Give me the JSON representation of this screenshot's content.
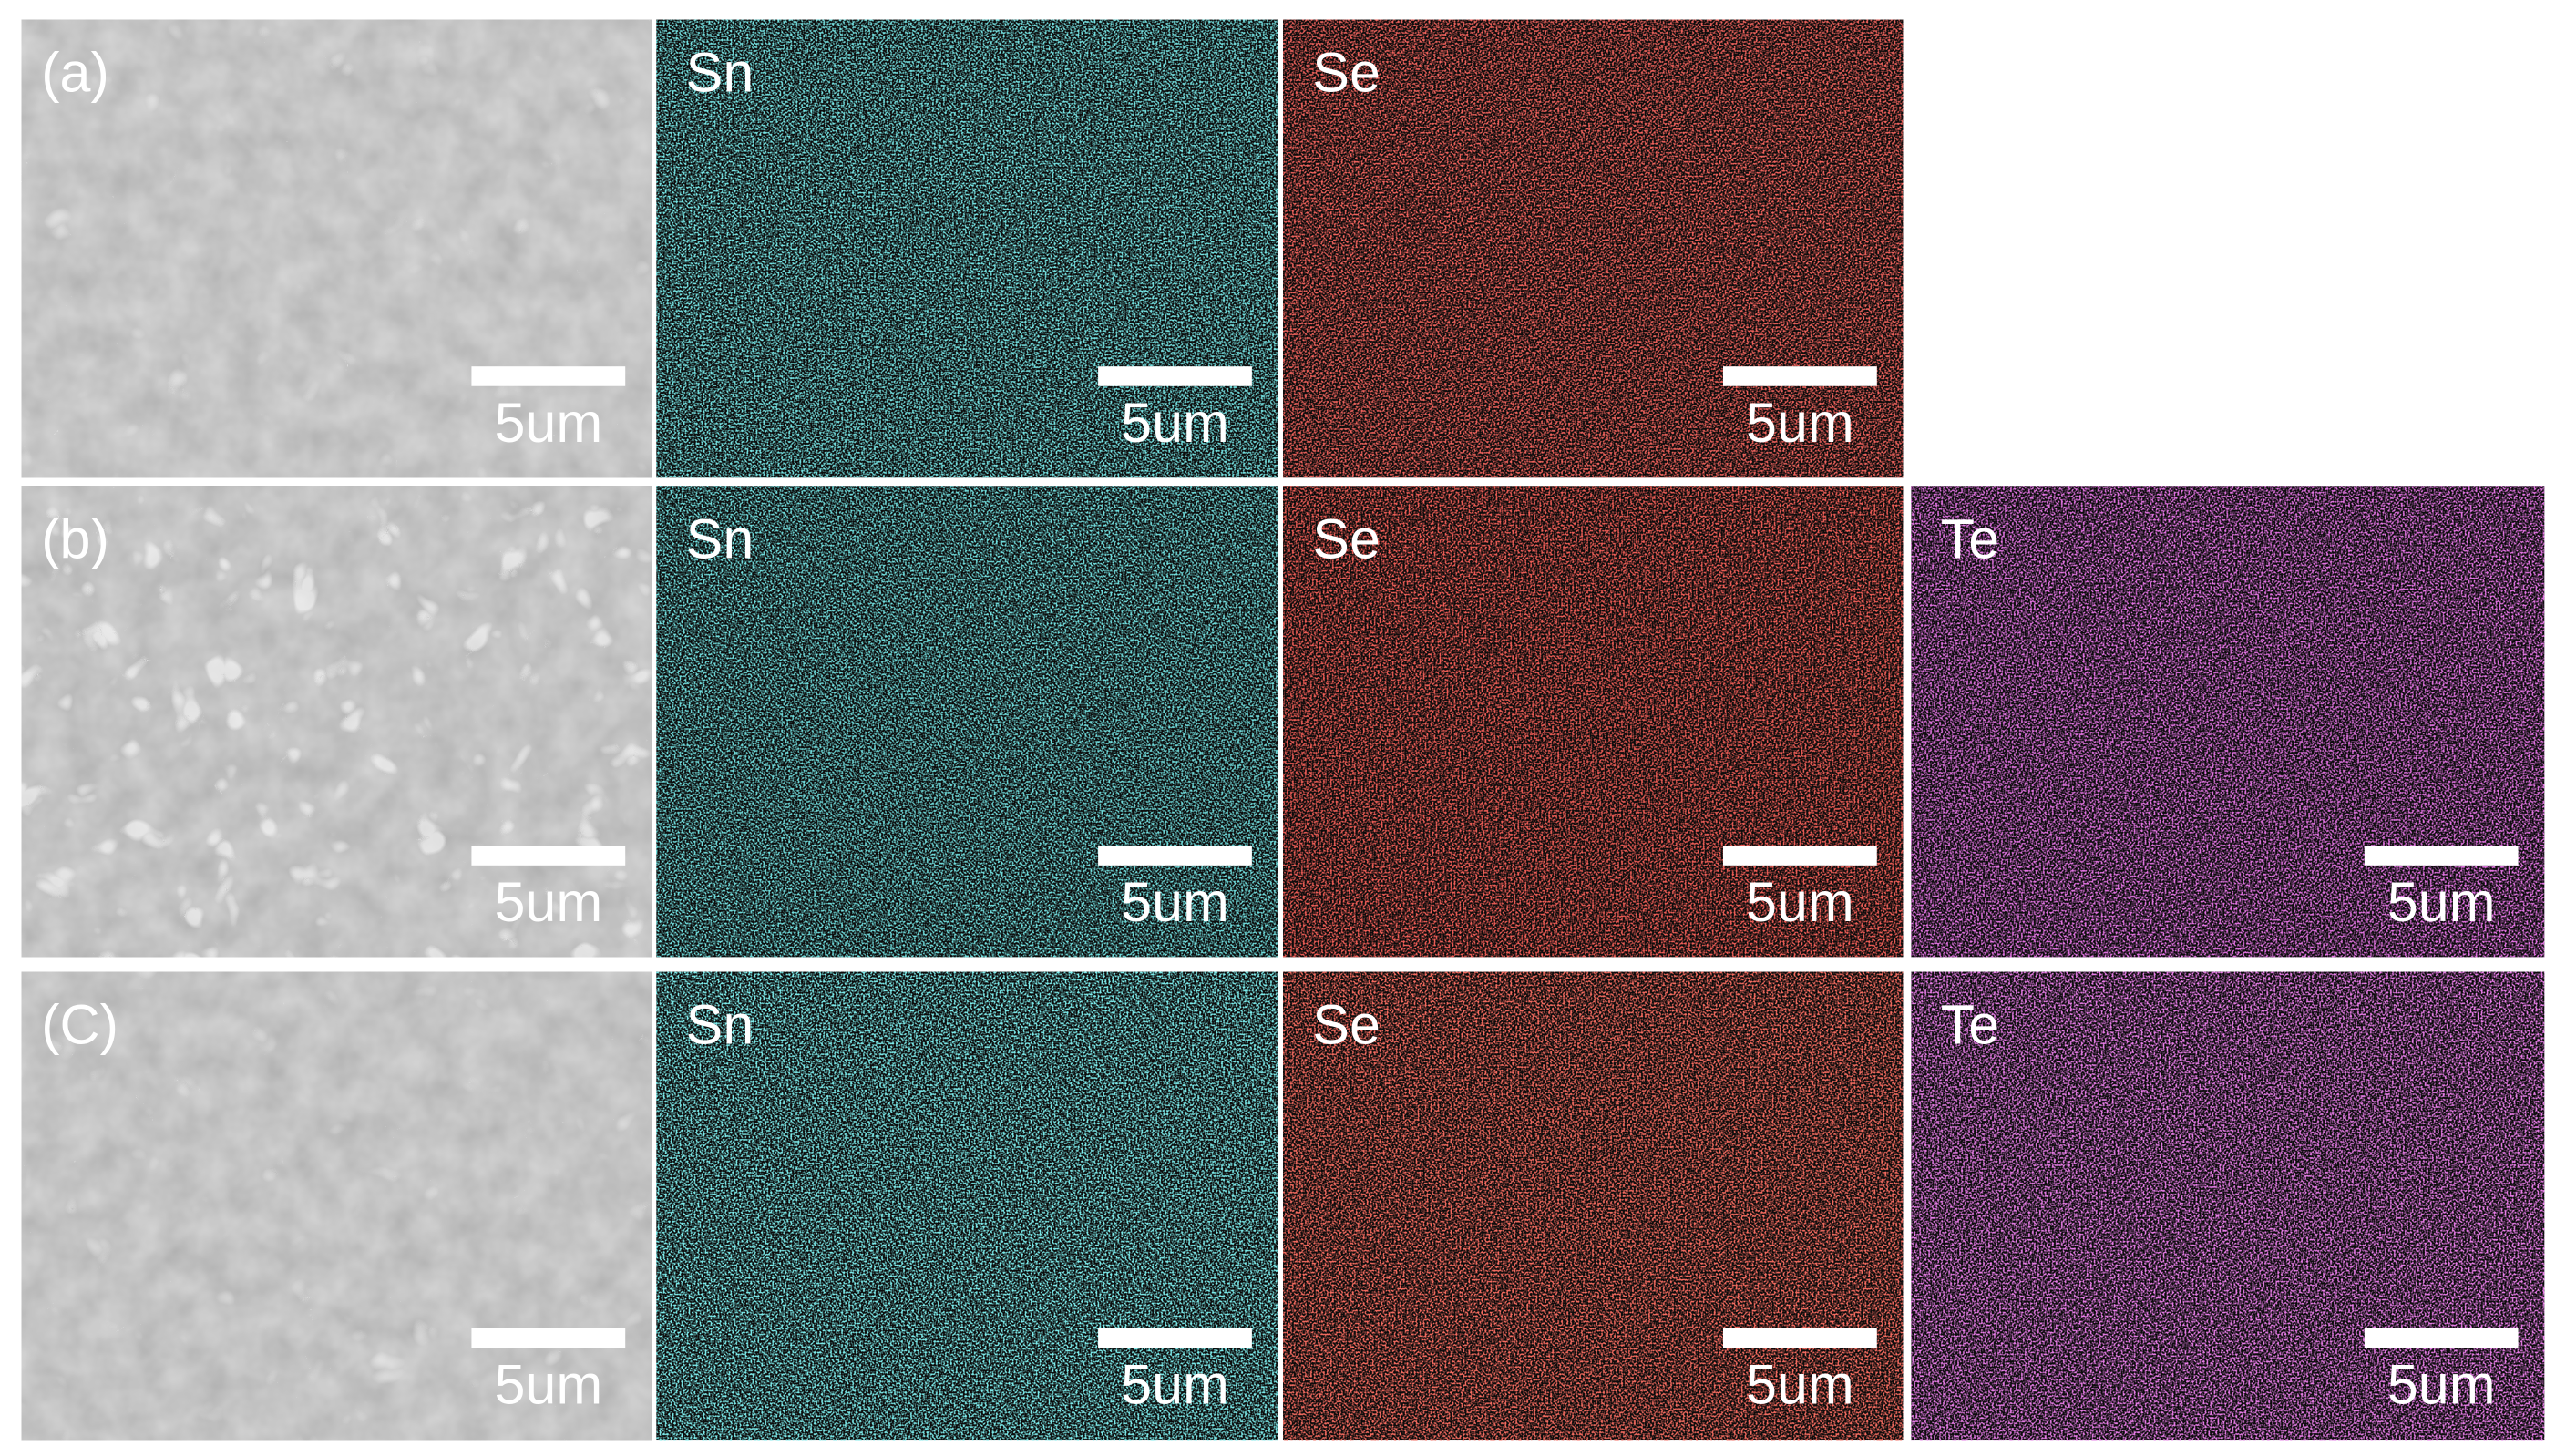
{
  "rows": [
    {
      "label": "(a)",
      "panels": [
        {
          "kind": "sem",
          "color": "#8d8d8d",
          "scale_bar": "5um"
        },
        {
          "name": "Sn",
          "color": "#2ec4c4",
          "scale_bar": "5um"
        },
        {
          "name": "Se",
          "color": "#e0201c",
          "scale_bar": "5um"
        }
      ]
    },
    {
      "label": "(b)",
      "panels": [
        {
          "kind": "sem",
          "color": "#8a8a8a",
          "scale_bar": "5um"
        },
        {
          "name": "Sn",
          "color": "#2ab8b8",
          "scale_bar": "5um"
        },
        {
          "name": "Se",
          "color": "#d81c18",
          "scale_bar": "5um"
        },
        {
          "name": "Te",
          "color": "#c02cc0",
          "scale_bar": "5um"
        }
      ]
    },
    {
      "label": "(C)",
      "panels": [
        {
          "kind": "sem",
          "color": "#8b8b8b",
          "scale_bar": "5um"
        },
        {
          "name": "Sn",
          "color": "#34d4d4",
          "scale_bar": "5um"
        },
        {
          "name": "Se",
          "color": "#e8261e",
          "scale_bar": "5um"
        },
        {
          "name": "Te",
          "color": "#cc34cc",
          "scale_bar": "5um"
        }
      ]
    }
  ]
}
